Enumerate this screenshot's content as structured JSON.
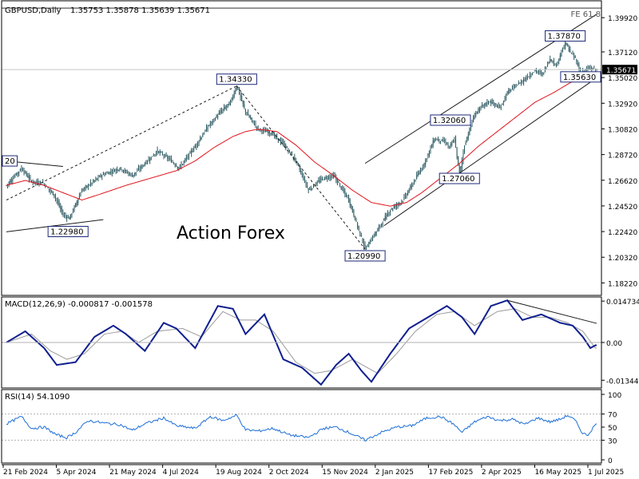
{
  "header": {
    "symbol": "GBPUSD,Daily",
    "ohlc": "1.35753 1.35878 1.35639 1.35671",
    "fe_label": "FE 61.8",
    "watermark": "Action Forex"
  },
  "chart_data": [
    {
      "type": "candlestick",
      "title": "GBPUSD,Daily",
      "ylim": [
        1.172,
        1.413
      ],
      "y_ticks": [
        "1.39920",
        "1.37120",
        "1.35020",
        "1.32920",
        "1.30820",
        "1.28720",
        "1.26620",
        "1.24520",
        "1.22420",
        "1.20320",
        "1.18220"
      ],
      "last_price": "1.35671",
      "x_labels": [
        "21 Feb 2024",
        "5 Apr 2024",
        "21 May 2024",
        "4 Jul 2024",
        "19 Aug 2024",
        "2 Oct 2024",
        "15 Nov 2024",
        "2 Jan 2025",
        "17 Feb 2025",
        "2 Apr 2025",
        "16 May 2025",
        "1 Jul 2025"
      ],
      "close_keypoints": [
        [
          0,
          1.262
        ],
        [
          12,
          1.276
        ],
        [
          20,
          1.265
        ],
        [
          29,
          1.264
        ],
        [
          38,
          1.254
        ],
        [
          45,
          1.238
        ],
        [
          50,
          1.235
        ],
        [
          60,
          1.258
        ],
        [
          75,
          1.27
        ],
        [
          90,
          1.276
        ],
        [
          100,
          1.27
        ],
        [
          110,
          1.28
        ],
        [
          120,
          1.29
        ],
        [
          130,
          1.283
        ],
        [
          137,
          1.276
        ],
        [
          150,
          1.294
        ],
        [
          160,
          1.31
        ],
        [
          170,
          1.322
        ],
        [
          178,
          1.33
        ],
        [
          183,
          1.3433
        ],
        [
          190,
          1.322
        ],
        [
          200,
          1.308
        ],
        [
          210,
          1.305
        ],
        [
          220,
          1.296
        ],
        [
          230,
          1.282
        ],
        [
          240,
          1.258
        ],
        [
          250,
          1.267
        ],
        [
          260,
          1.27
        ],
        [
          272,
          1.25
        ],
        [
          285,
          1.2099
        ],
        [
          295,
          1.226
        ],
        [
          305,
          1.242
        ],
        [
          315,
          1.25
        ],
        [
          322,
          1.262
        ],
        [
          332,
          1.28
        ],
        [
          340,
          1.3
        ],
        [
          348,
          1.298
        ],
        [
          352,
          1.293
        ],
        [
          356,
          1.3
        ],
        [
          360,
          1.2706
        ],
        [
          364,
          1.295
        ],
        [
          372,
          1.32
        ],
        [
          378,
          1.327
        ],
        [
          384,
          1.331
        ],
        [
          392,
          1.325
        ],
        [
          398,
          1.338
        ],
        [
          404,
          1.343
        ],
        [
          412,
          1.349
        ],
        [
          420,
          1.356
        ],
        [
          426,
          1.353
        ],
        [
          432,
          1.366
        ],
        [
          436,
          1.36
        ],
        [
          440,
          1.368
        ],
        [
          444,
          1.3787
        ],
        [
          448,
          1.371
        ],
        [
          452,
          1.366
        ],
        [
          456,
          1.354
        ],
        [
          460,
          1.3563
        ],
        [
          464,
          1.358
        ],
        [
          468,
          1.3567
        ]
      ],
      "ma_keypoints": [
        [
          0,
          1.262
        ],
        [
          15,
          1.266
        ],
        [
          30,
          1.262
        ],
        [
          45,
          1.256
        ],
        [
          60,
          1.25
        ],
        [
          75,
          1.255
        ],
        [
          95,
          1.262
        ],
        [
          115,
          1.268
        ],
        [
          135,
          1.274
        ],
        [
          150,
          1.282
        ],
        [
          165,
          1.293
        ],
        [
          180,
          1.302
        ],
        [
          190,
          1.306
        ],
        [
          200,
          1.308
        ],
        [
          215,
          1.306
        ],
        [
          230,
          1.295
        ],
        [
          245,
          1.281
        ],
        [
          260,
          1.27
        ],
        [
          275,
          1.258
        ],
        [
          290,
          1.248
        ],
        [
          305,
          1.245
        ],
        [
          318,
          1.248
        ],
        [
          330,
          1.256
        ],
        [
          345,
          1.268
        ],
        [
          360,
          1.28
        ],
        [
          375,
          1.294
        ],
        [
          390,
          1.306
        ],
        [
          405,
          1.318
        ],
        [
          420,
          1.33
        ],
        [
          435,
          1.338
        ],
        [
          448,
          1.346
        ],
        [
          458,
          1.35
        ],
        [
          468,
          1.352
        ]
      ],
      "annotations": [
        {
          "label": "1.34330",
          "i": 183,
          "price": 1.3433
        },
        {
          "label": "1.22980",
          "i": 49,
          "price": 1.2298
        },
        {
          "label": "1.20990",
          "i": 285,
          "price": 1.2099
        },
        {
          "label": "1.27060",
          "i": 360,
          "price": 1.2706
        },
        {
          "label": "1.32060",
          "i": 370,
          "price": 1.3206
        },
        {
          "label": "1.37870",
          "i": 444,
          "price": 1.3787
        },
        {
          "label": "1.35630",
          "i": 460,
          "price": 1.3563
        },
        {
          "label": "20",
          "i": 0,
          "price": 1.282
        }
      ],
      "trendlines": [
        {
          "from": [
            0,
            1.282
          ],
          "to": [
            45,
            1.2775
          ]
        },
        {
          "from": [
            0,
            1.224
          ],
          "to": [
            77,
            1.234
          ]
        },
        {
          "from": [
            0,
            1.25
          ],
          "to": [
            183,
            1.3433
          ]
        },
        {
          "from": [
            183,
            1.3433
          ],
          "to": [
            285,
            1.2099
          ]
        },
        {
          "from": [
            285,
            1.28
          ],
          "to": [
            469,
            1.402
          ]
        },
        {
          "from": [
            300,
            1.229
          ],
          "to": [
            469,
            1.35
          ]
        }
      ],
      "fe_level": 1.407
    },
    {
      "type": "line",
      "title": "MACD(12,26,9) -0.000817 -0.001578",
      "ylim": [
        -0.0162,
        0.0162
      ],
      "y_ticks": [
        "0.014734",
        "0.00",
        "-0.013442"
      ],
      "y_tick_values": [
        0.014734,
        0.0,
        -0.013442
      ],
      "series": [
        {
          "name": "MACD",
          "keypoints": [
            [
              0,
              0.0
            ],
            [
              15,
              0.004
            ],
            [
              30,
              -0.002
            ],
            [
              40,
              -0.008
            ],
            [
              55,
              -0.007
            ],
            [
              70,
              0.002
            ],
            [
              85,
              0.006
            ],
            [
              95,
              0.003
            ],
            [
              110,
              -0.003
            ],
            [
              125,
              0.007
            ],
            [
              135,
              0.005
            ],
            [
              150,
              -0.002
            ],
            [
              168,
              0.013
            ],
            [
              180,
              0.012
            ],
            [
              190,
              0.003
            ],
            [
              205,
              0.01
            ],
            [
              220,
              -0.006
            ],
            [
              235,
              -0.009
            ],
            [
              250,
              -0.015
            ],
            [
              262,
              -0.008
            ],
            [
              272,
              -0.004
            ],
            [
              282,
              -0.01
            ],
            [
              290,
              -0.014
            ],
            [
              305,
              -0.004
            ],
            [
              320,
              0.005
            ],
            [
              335,
              0.009
            ],
            [
              350,
              0.013
            ],
            [
              362,
              0.009
            ],
            [
              372,
              0.003
            ],
            [
              385,
              0.013
            ],
            [
              398,
              0.015
            ],
            [
              410,
              0.008
            ],
            [
              425,
              0.01
            ],
            [
              440,
              0.007
            ],
            [
              450,
              0.006
            ],
            [
              458,
              0.002
            ],
            [
              464,
              -0.002
            ],
            [
              468,
              -0.001
            ]
          ]
        },
        {
          "name": "Signal",
          "keypoints": [
            [
              0,
              0.0
            ],
            [
              20,
              0.003
            ],
            [
              35,
              -0.003
            ],
            [
              48,
              -0.006
            ],
            [
              62,
              -0.004
            ],
            [
              78,
              0.003
            ],
            [
              92,
              0.004
            ],
            [
              105,
              0.0
            ],
            [
              120,
              0.004
            ],
            [
              140,
              0.005
            ],
            [
              155,
              0.002
            ],
            [
              172,
              0.011
            ],
            [
              186,
              0.008
            ],
            [
              198,
              0.008
            ],
            [
              212,
              0.004
            ],
            [
              230,
              -0.007
            ],
            [
              245,
              -0.011
            ],
            [
              258,
              -0.01
            ],
            [
              275,
              -0.006
            ],
            [
              295,
              -0.011
            ],
            [
              310,
              -0.004
            ],
            [
              325,
              0.004
            ],
            [
              342,
              0.01
            ],
            [
              356,
              0.011
            ],
            [
              372,
              0.006
            ],
            [
              390,
              0.011
            ],
            [
              404,
              0.012
            ],
            [
              418,
              0.009
            ],
            [
              432,
              0.009
            ],
            [
              446,
              0.007
            ],
            [
              458,
              0.004
            ],
            [
              468,
              -0.002
            ]
          ]
        }
      ],
      "trendline": {
        "from": [
          398,
          0.015
        ],
        "to": [
          469,
          0.0068
        ]
      }
    },
    {
      "type": "line",
      "title": "RSI(14) 54.1090",
      "ylim": [
        0,
        100
      ],
      "y_ticks": [
        "100",
        "70",
        "50",
        "30",
        "0"
      ],
      "y_tick_values": [
        100,
        70,
        50,
        30,
        0
      ],
      "levels": [
        70,
        30
      ],
      "series": [
        {
          "name": "RSI",
          "keypoints": [
            [
              0,
              55
            ],
            [
              12,
              66
            ],
            [
              20,
              48
            ],
            [
              30,
              50
            ],
            [
              40,
              38
            ],
            [
              48,
              34
            ],
            [
              55,
              42
            ],
            [
              65,
              60
            ],
            [
              78,
              56
            ],
            [
              90,
              54
            ],
            [
              100,
              45
            ],
            [
              110,
              55
            ],
            [
              125,
              64
            ],
            [
              135,
              52
            ],
            [
              150,
              48
            ],
            [
              162,
              66
            ],
            [
              172,
              60
            ],
            [
              183,
              68
            ],
            [
              190,
              46
            ],
            [
              200,
              44
            ],
            [
              212,
              48
            ],
            [
              225,
              38
            ],
            [
              240,
              34
            ],
            [
              252,
              48
            ],
            [
              262,
              50
            ],
            [
              272,
              42
            ],
            [
              285,
              30
            ],
            [
              298,
              42
            ],
            [
              310,
              50
            ],
            [
              322,
              52
            ],
            [
              334,
              64
            ],
            [
              345,
              66
            ],
            [
              355,
              55
            ],
            [
              362,
              42
            ],
            [
              372,
              58
            ],
            [
              382,
              66
            ],
            [
              392,
              60
            ],
            [
              402,
              62
            ],
            [
              412,
              54
            ],
            [
              422,
              64
            ],
            [
              432,
              58
            ],
            [
              440,
              62
            ],
            [
              446,
              68
            ],
            [
              452,
              60
            ],
            [
              458,
              40
            ],
            [
              462,
              38
            ],
            [
              468,
              54
            ]
          ]
        }
      ]
    }
  ],
  "panels": {
    "macd_title": "MACD(12,26,9) -0.000817 -0.001578",
    "rsi_title": "RSI(14) 54.1090"
  },
  "colors": {
    "background": "#ffffff",
    "candle": "#2d5b63",
    "ma": "#e0141c",
    "macd": "#0f1f8f",
    "signal": "#9a9a9a",
    "rsi": "#1e6fd6",
    "trendline": "#1a1a1a",
    "level": "#b0b0b0",
    "label_border": "#1e2a7a",
    "watermark": "#b5b5b5"
  }
}
